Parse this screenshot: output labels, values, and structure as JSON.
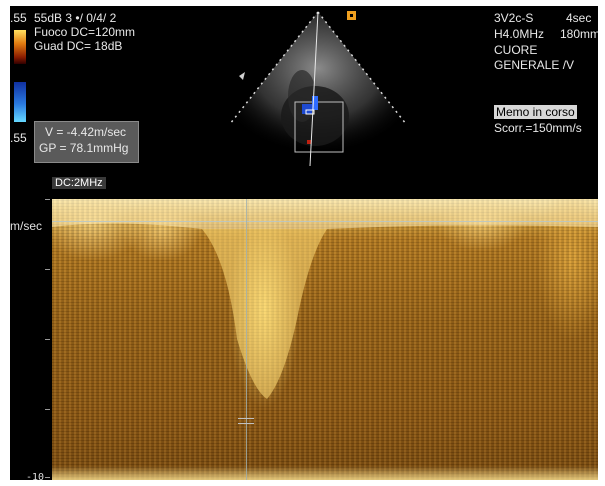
{
  "header": {
    "left_scale_top": ".55",
    "line1": "55dB  3 •/ 0/4/ 2",
    "fuoco": "Fuoco DC=120mm",
    "guad": "Guad DC=  18dB",
    "left_scale_bottom": ".55"
  },
  "measurement": {
    "velocity": "V = -4.42m/sec",
    "gradient": "GP = 78.1mmHg"
  },
  "probe_info": {
    "probe": "3V2c-S",
    "time": "4sec",
    "freq": "H4.0MHz",
    "depth": "180mm",
    "preset1": "CUORE",
    "preset2": "GENERALE /V"
  },
  "status": {
    "memo": "Memo in corso",
    "scroll": "Scorr.=150mm/s"
  },
  "doppler": {
    "dc_label": "DC:2MHz",
    "velocity_unit": "m/sec",
    "bottom_scale": "-10"
  },
  "icons": {
    "marker": "probe-orientation-marker-icon"
  },
  "colors": {
    "screen_bg": "#000000",
    "marker_orange": "#f0a020",
    "doppler_bright": "#f8e6a8",
    "doppler_dark": "#7a4a0e"
  }
}
